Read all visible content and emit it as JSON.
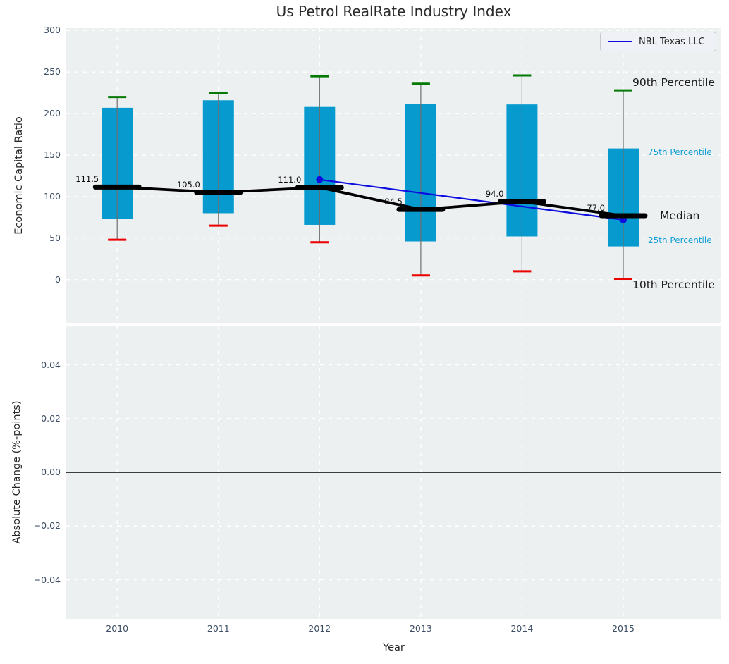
{
  "colors": {
    "plot_bg": "#edf0f1",
    "grid": "#ffffff",
    "box": "#069acf",
    "cap_90": "#047a04",
    "cap_10": "#ec0000",
    "median": "#000000",
    "whisker": "#6e6e6e",
    "company_line": "#0d0de0",
    "zero_line": "#000000",
    "tick_label": "#3d4e64",
    "annotation_blue": "#0f9ed3",
    "legend_bg": "#f0f1f6",
    "legend_border": "#c8c9ce"
  },
  "chart_data": [
    {
      "type": "boxplot",
      "title": "Us Petrol RealRate Industry Index",
      "ylabel": "Economic Capital Ratio",
      "categories": [
        "2010",
        "2011",
        "2012",
        "2013",
        "2014",
        "2015"
      ],
      "yticks": [
        "0",
        "50",
        "100",
        "150",
        "200",
        "250",
        "300"
      ],
      "ytick_values": [
        0,
        50,
        100,
        150,
        200,
        250,
        300
      ],
      "ylim": [
        -52,
        303
      ],
      "grid": true,
      "legend": {
        "position": "upper right",
        "entries": [
          {
            "label": "NBL Texas LLC"
          }
        ]
      },
      "boxes": [
        {
          "category": "2010",
          "p10": 48,
          "p25": 73,
          "median": 111.5,
          "p75": 207,
          "p90": 220,
          "label": "111.5"
        },
        {
          "category": "2011",
          "p10": 65,
          "p25": 80,
          "median": 105.0,
          "p75": 216,
          "p90": 225,
          "label": "105.0"
        },
        {
          "category": "2012",
          "p10": 45,
          "p25": 66,
          "median": 111.0,
          "p75": 208,
          "p90": 245,
          "label": "111.0"
        },
        {
          "category": "2013",
          "p10": 5,
          "p25": 46,
          "median": 84.5,
          "p75": 212,
          "p90": 236,
          "label": "84.5"
        },
        {
          "category": "2014",
          "p10": 10,
          "p25": 52,
          "median": 94.0,
          "p75": 211,
          "p90": 246,
          "label": "94.0"
        },
        {
          "category": "2015",
          "p10": 1,
          "p25": 40,
          "median": 77.0,
          "p75": 158,
          "p90": 228,
          "label": "77.0"
        }
      ],
      "company_line": {
        "name": "NBL Texas LLC",
        "points": [
          {
            "x": "2012",
            "y": 120.5
          },
          {
            "x": "2015",
            "y": 72
          }
        ]
      },
      "percentile_labels": [
        "90th Percentile",
        "75th Percentile",
        "Median",
        "25th Percentile",
        "10th Percentile"
      ]
    },
    {
      "type": "line",
      "ylabel": "Absolute Change (%-points)",
      "xlabel": "Year",
      "yticks": [
        "0.04",
        "0.02",
        "0.00",
        "−0.02",
        "−0.04"
      ],
      "ytick_values": [
        0.04,
        0.02,
        0.0,
        -0.02,
        -0.04
      ],
      "ylim": [
        -0.055,
        0.055
      ],
      "zero_line": 0.0,
      "series": []
    }
  ]
}
